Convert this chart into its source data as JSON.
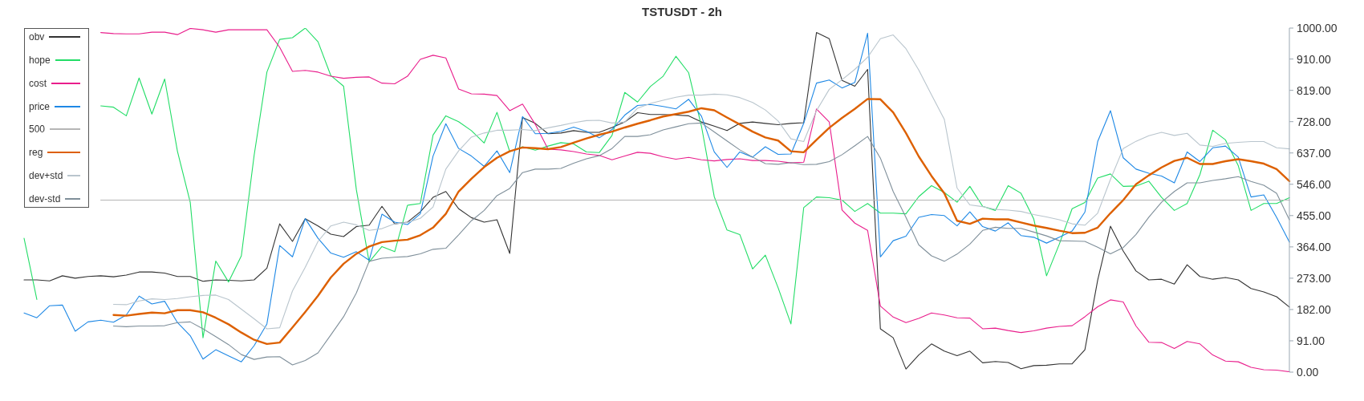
{
  "chart_data": {
    "type": "line",
    "title": "TSTUSDT - 2h",
    "categories": [
      null,
      null,
      null,
      null,
      null,
      null,
      null,
      null,
      null,
      null,
      null,
      null,
      null,
      null,
      null,
      null,
      null,
      null,
      null,
      null,
      null,
      null,
      null,
      null,
      null,
      null,
      null,
      null,
      null,
      null,
      null,
      null,
      null,
      null,
      null,
      null,
      null,
      null,
      null,
      null,
      null,
      null,
      null,
      null,
      null,
      null,
      null,
      null,
      null,
      null,
      null,
      null,
      null,
      null,
      null,
      null,
      null,
      null,
      null,
      null,
      null,
      null,
      null,
      null,
      null,
      null,
      null,
      null,
      null,
      null,
      null,
      null,
      null,
      null,
      null,
      null,
      null,
      null,
      null,
      null,
      null,
      null,
      null,
      null,
      null,
      null,
      null,
      null,
      null,
      null,
      null,
      null,
      null,
      null,
      null,
      null,
      null,
      null,
      null,
      null
    ],
    "series": [
      {
        "name": "obv",
        "color": "#333333",
        "values": [
          268,
          268,
          265,
          280,
          273,
          278,
          280,
          277,
          282,
          291,
          291,
          288,
          278,
          278,
          264,
          268,
          267,
          265,
          268,
          302,
          431,
          380,
          446,
          425,
          401,
          394,
          423,
          427,
          482,
          431,
          436,
          466,
          508,
          525,
          475,
          449,
          436,
          443,
          345,
          740,
          723,
          693,
          695,
          702,
          697,
          697,
          711,
          727,
          754,
          749,
          749,
          747,
          745,
          727,
          715,
          702,
          723,
          727,
          723,
          719,
          723,
          725,
          987,
          969,
          848,
          831,
          880,
          126,
          100,
          9,
          50,
          82,
          61,
          48,
          61,
          27,
          31,
          28,
          10,
          19,
          20,
          24,
          24,
          65,
          267,
          424,
          352,
          294,
          268,
          270,
          256,
          312,
          278,
          270,
          275,
          268,
          243,
          233,
          219,
          189
        ]
      },
      {
        "name": "hope",
        "color": "#22dd66",
        "values": [
          389,
          211,
          null,
          null,
          null,
          null,
          774,
          770,
          745,
          855,
          750,
          852,
          642,
          494,
          100,
          323,
          262,
          338,
          630,
          872,
          967,
          972,
          1000,
          960,
          862,
          831,
          530,
          320,
          365,
          350,
          485,
          490,
          689,
          745,
          728,
          702,
          666,
          755,
          641,
          655,
          645,
          657,
          667,
          663,
          640,
          638,
          688,
          813,
          785,
          830,
          860,
          918,
          870,
          715,
          510,
          413,
          400,
          300,
          340,
          245,
          140,
          478,
          509,
          507,
          500,
          467,
          490,
          462,
          462,
          460,
          510,
          542,
          522,
          494,
          540,
          482,
          470,
          542,
          520,
          445,
          280,
          372,
          475,
          493,
          564,
          576,
          540,
          541,
          555,
          508,
          470,
          490,
          574,
          703,
          675,
          600,
          470,
          490,
          490,
          507
        ]
      },
      {
        "name": "cost",
        "color": "#e91e8c",
        "values": [
          null,
          null,
          null,
          null,
          null,
          null,
          987,
          984,
          983,
          983,
          988,
          988,
          981,
          999,
          995,
          988,
          995,
          995,
          995,
          995,
          944,
          874,
          877,
          872,
          860,
          854,
          857,
          858,
          840,
          838,
          860,
          909,
          921,
          913,
          823,
          809,
          808,
          804,
          760,
          779,
          720,
          648,
          646,
          641,
          634,
          630,
          617,
          628,
          639,
          636,
          626,
          619,
          624,
          617,
          614,
          618,
          620,
          615,
          615,
          613,
          608,
          610,
          765,
          727,
          471,
          433,
          412,
          192,
          160,
          144,
          156,
          172,
          166,
          158,
          157,
          126,
          128,
          121,
          115,
          120,
          128,
          133,
          135,
          161,
          190,
          210,
          204,
          134,
          87,
          86,
          69,
          89,
          82,
          50,
          32,
          30,
          14,
          7,
          6,
          1
        ]
      },
      {
        "name": "price",
        "color": "#1e88e5",
        "values": [
          172,
          158,
          193,
          195,
          119,
          146,
          151,
          145,
          166,
          221,
          198,
          206,
          144,
          106,
          38,
          65,
          47,
          30,
          77,
          140,
          368,
          335,
          446,
          389,
          346,
          334,
          350,
          325,
          459,
          436,
          429,
          460,
          628,
          722,
          650,
          628,
          598,
          643,
          580,
          743,
          693,
          694,
          700,
          712,
          700,
          681,
          705,
          747,
          775,
          778,
          772,
          765,
          793,
          744,
          640,
          595,
          640,
          625,
          655,
          633,
          634,
          723,
          840,
          849,
          826,
          842,
          985,
          335,
          382,
          395,
          450,
          458,
          455,
          425,
          466,
          423,
          410,
          434,
          397,
          392,
          375,
          392,
          410,
          465,
          670,
          760,
          623,
          590,
          578,
          570,
          550,
          640,
          612,
          652,
          657,
          625,
          509,
          515,
          450,
          378
        ]
      },
      {
        "name": "500",
        "color": "#b5b5b5",
        "values": [
          null,
          null,
          null,
          null,
          null,
          null,
          500,
          500,
          500,
          500,
          500,
          500,
          500,
          500,
          500,
          500,
          500,
          500,
          500,
          500,
          500,
          500,
          500,
          500,
          500,
          500,
          500,
          500,
          500,
          500,
          500,
          500,
          500,
          500,
          500,
          500,
          500,
          500,
          500,
          500,
          500,
          500,
          500,
          500,
          500,
          500,
          500,
          500,
          500,
          500,
          500,
          500,
          500,
          500,
          500,
          500,
          500,
          500,
          500,
          500,
          500,
          500,
          500,
          500,
          500,
          500,
          500,
          500,
          500,
          500,
          500,
          500,
          500,
          500,
          500,
          500,
          500,
          500,
          500,
          500,
          500,
          500,
          500,
          500,
          500,
          500,
          500,
          500,
          500,
          500,
          500,
          500,
          500,
          500,
          500,
          500,
          500,
          500,
          500,
          500
        ]
      },
      {
        "name": "reg",
        "color": "#dd6000",
        "values": [
          null,
          null,
          null,
          null,
          null,
          null,
          null,
          166,
          164,
          169,
          173,
          171,
          180,
          180,
          174,
          158,
          139,
          115,
          94,
          82,
          86,
          130,
          175,
          222,
          275,
          315,
          344,
          365,
          378,
          382,
          385,
          398,
          420,
          460,
          525,
          562,
          596,
          623,
          642,
          653,
          651,
          648,
          654,
          667,
          679,
          690,
          699,
          711,
          722,
          732,
          743,
          750,
          757,
          767,
          761,
          740,
          720,
          699,
          682,
          673,
          642,
          639,
          675,
          710,
          739,
          765,
          794,
          793,
          755,
          695,
          627,
          570,
          520,
          440,
          431,
          446,
          444,
          444,
          435,
          426,
          419,
          411,
          404,
          405,
          420,
          462,
          500,
          546,
          572,
          595,
          614,
          623,
          605,
          605,
          613,
          619,
          613,
          606,
          590,
          555
        ]
      },
      {
        "name": "dev+std",
        "color": "#b9c5cd",
        "values": [
          null,
          null,
          null,
          null,
          null,
          null,
          null,
          197,
          196,
          207,
          213,
          211,
          214,
          219,
          223,
          224,
          211,
          183,
          155,
          126,
          129,
          236,
          305,
          380,
          425,
          436,
          428,
          412,
          417,
          431,
          435,
          447,
          480,
          590,
          643,
          683,
          695,
          703,
          703,
          705,
          702,
          710,
          717,
          725,
          731,
          732,
          724,
          727,
          767,
          781,
          790,
          799,
          805,
          805,
          808,
          806,
          798,
          784,
          762,
          730,
          678,
          670,
          760,
          822,
          850,
          880,
          915,
          969,
          980,
          940,
          878,
          806,
          735,
          535,
          486,
          481,
          473,
          471,
          467,
          458,
          451,
          443,
          431,
          427,
          462,
          560,
          650,
          671,
          687,
          697,
          688,
          694,
          660,
          656,
          665,
          668,
          670,
          670,
          652,
          649
        ]
      },
      {
        "name": "dev-std",
        "color": "#7f8f9a",
        "values": [
          null,
          null,
          null,
          null,
          null,
          null,
          null,
          134,
          132,
          134,
          134,
          135,
          144,
          146,
          126,
          103,
          80,
          51,
          37,
          44,
          45,
          21,
          34,
          56,
          108,
          161,
          230,
          322,
          331,
          334,
          336,
          344,
          357,
          360,
          399,
          440,
          470,
          513,
          534,
          580,
          590,
          590,
          592,
          607,
          620,
          629,
          650,
          685,
          685,
          690,
          704,
          713,
          722,
          724,
          698,
          672,
          646,
          625,
          606,
          604,
          609,
          603,
          604,
          612,
          632,
          658,
          685,
          622,
          525,
          450,
          370,
          338,
          322,
          343,
          372,
          412,
          421,
          418,
          418,
          407,
          396,
          382,
          381,
          380,
          363,
          344,
          362,
          400,
          450,
          494,
          525,
          550,
          550,
          557,
          562,
          568,
          554,
          543,
          520,
          443
        ]
      }
    ],
    "ylim": [
      0,
      1000
    ],
    "yticks": [
      {
        "value": 0,
        "label": "0.00"
      },
      {
        "value": 91,
        "label": "91.00"
      },
      {
        "value": 182,
        "label": "182.00"
      },
      {
        "value": 273,
        "label": "273.00"
      },
      {
        "value": 364,
        "label": "364.00"
      },
      {
        "value": 455,
        "label": "455.00"
      },
      {
        "value": 546,
        "label": "546.00"
      },
      {
        "value": 637,
        "label": "637.00"
      },
      {
        "value": 728,
        "label": "728.00"
      },
      {
        "value": 819,
        "label": "819.00"
      },
      {
        "value": 910,
        "label": "910.00"
      },
      {
        "value": 1000,
        "label": "1000.00"
      }
    ],
    "tick_labels": "y",
    "legend": "top left"
  }
}
